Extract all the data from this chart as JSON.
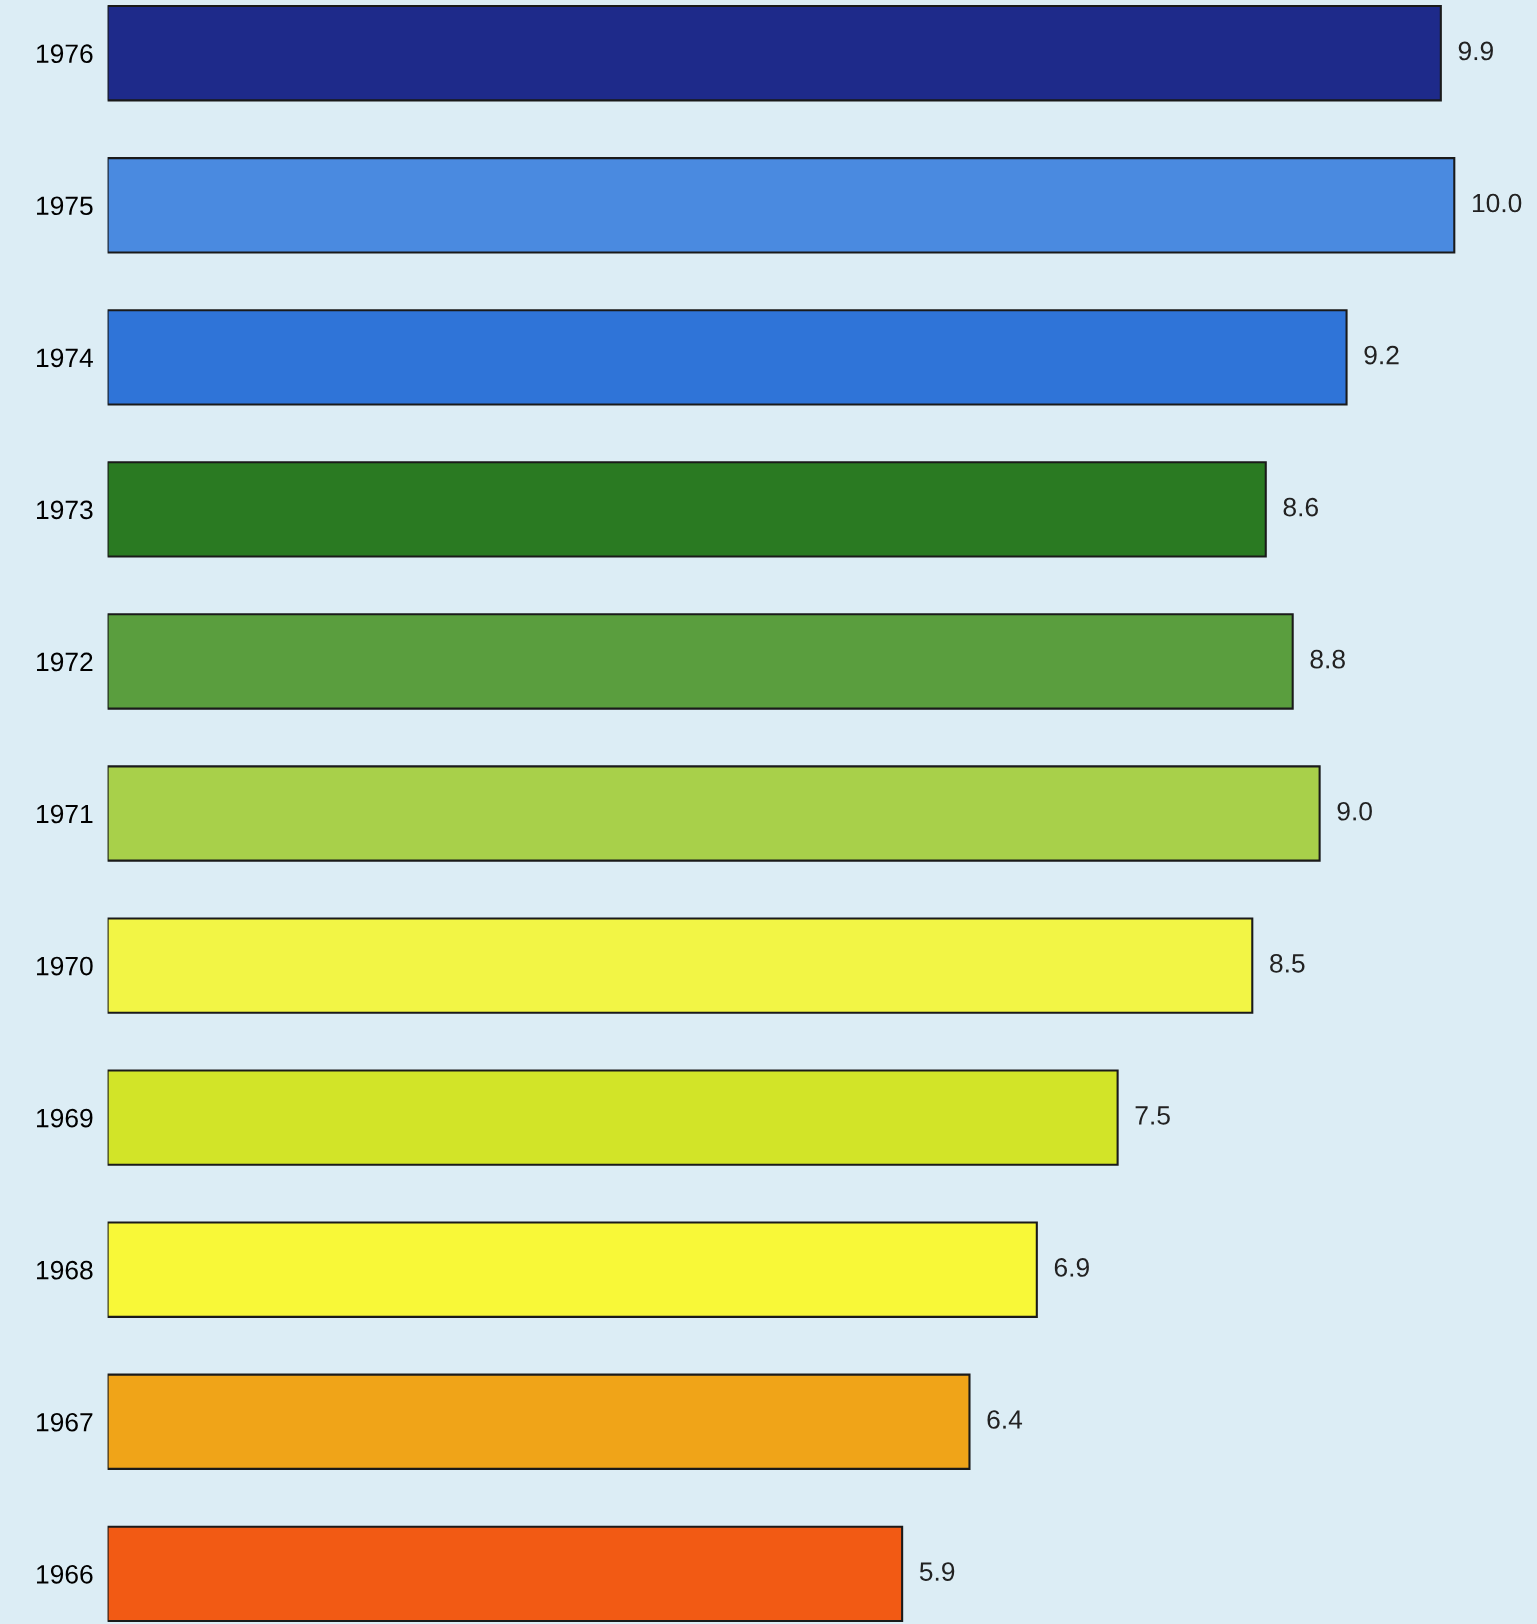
{
  "chart_data": {
    "type": "bar",
    "orientation": "horizontal",
    "grid": false,
    "categories": [
      "1976",
      "1975",
      "1974",
      "1973",
      "1972",
      "1971",
      "1970",
      "1969",
      "1968",
      "1967",
      "1966"
    ],
    "values": [
      9.9,
      10.0,
      9.2,
      8.6,
      8.8,
      9.0,
      8.5,
      7.5,
      6.9,
      6.4,
      5.9
    ],
    "value_labels": [
      "9.9",
      "10.0",
      "9.2",
      "8.6",
      "8.8",
      "9.0",
      "8.5",
      "7.5",
      "6.9",
      "6.4",
      "5.9"
    ],
    "colors": [
      "#1e2a8a",
      "#4a8ae0",
      "#2f74d8",
      "#2a7a22",
      "#5a9e3e",
      "#a8d04a",
      "#f2f545",
      "#d2e428",
      "#f8f838",
      "#f0a418",
      "#f25a14"
    ]
  }
}
